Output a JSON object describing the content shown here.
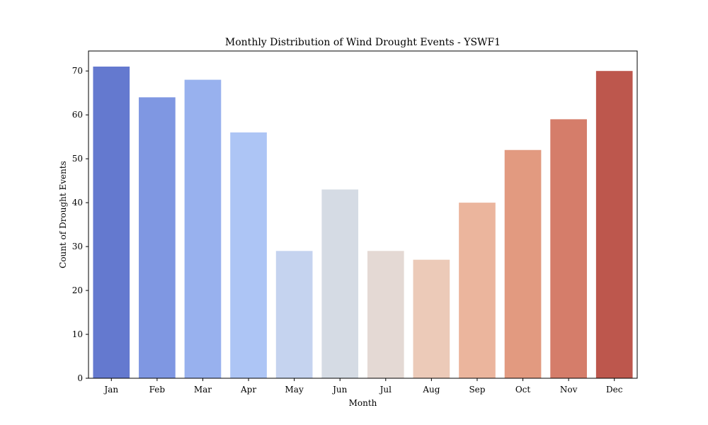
{
  "chart_data": {
    "type": "bar",
    "title": "Monthly Distribution of Wind Drought Events - YSWF1",
    "xlabel": "Month",
    "ylabel": "Count of Drought Events",
    "categories": [
      "Jan",
      "Feb",
      "Mar",
      "Apr",
      "May",
      "Jun",
      "Jul",
      "Aug",
      "Sep",
      "Oct",
      "Nov",
      "Dec"
    ],
    "values": [
      71,
      64,
      68,
      56,
      29,
      43,
      29,
      27,
      40,
      52,
      59,
      70
    ],
    "colors": [
      "#6479cf",
      "#7f97e2",
      "#98b1ee",
      "#adc5f5",
      "#c5d3ef",
      "#d5dbe4",
      "#e4d9d4",
      "#eccab8",
      "#ebb59d",
      "#e29a80",
      "#d57d6a",
      "#bd574d"
    ],
    "ylim": [
      0,
      74.55
    ],
    "yticks": [
      0,
      10,
      20,
      30,
      40,
      50,
      60,
      70
    ],
    "grid": false,
    "legend": false
  }
}
